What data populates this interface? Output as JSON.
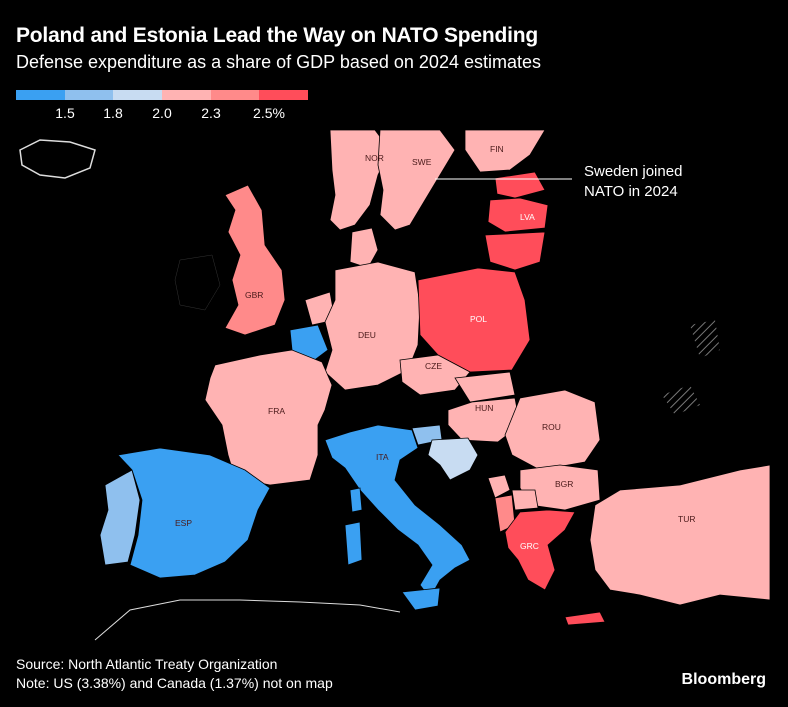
{
  "title": "Poland and Estonia Lead the Way on NATO Spending",
  "subtitle": "Defense expenditure as a share of GDP based on 2024 estimates",
  "legend": {
    "colors": [
      "#3aa0f2",
      "#8fc0ee",
      "#c8dcf2",
      "#ffb3b3",
      "#ff8a8a",
      "#ff4d5a"
    ],
    "ticks": [
      "1.5",
      "1.8",
      "2.0",
      "2.3",
      "2.5%"
    ]
  },
  "colors": {
    "background": "#000000",
    "non_nato": "#000000",
    "border": "#000000",
    "blue_dark": "#3aa0f2",
    "blue_light": "#8fc0ee",
    "blue_pale": "#c8dcf2",
    "pink_light": "#ffb3b3",
    "pink": "#ff8a8a",
    "red": "#ff4d5a"
  },
  "countries": {
    "NOR": "NOR",
    "SWE": "SWE",
    "FIN": "FIN",
    "LVA": "LVA",
    "GBR": "GBR",
    "DEU": "DEU",
    "POL": "POL",
    "CZE": "CZE",
    "FRA": "FRA",
    "HUN": "HUN",
    "ROU": "ROU",
    "ITA": "ITA",
    "BGR": "BGR",
    "ESP": "ESP",
    "GRC": "GRC",
    "TUR": "TUR"
  },
  "annotation": "Sweden joined NATO in 2024",
  "source": "Source: North Atlantic Treaty Organization",
  "note": "Note: US (3.38%) and Canada (1.37%) not on map",
  "brand": "Bloomberg"
}
